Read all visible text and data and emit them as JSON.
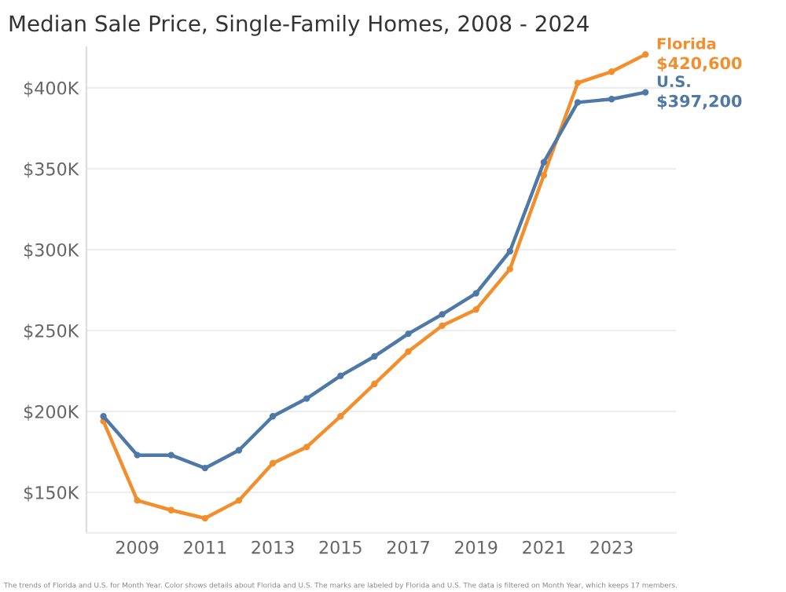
{
  "chart_data": {
    "type": "line",
    "title": "Median Sale Price, Single-Family Homes, 2008 - 2024",
    "x": [
      2008,
      2009,
      2010,
      2011,
      2012,
      2013,
      2014,
      2015,
      2016,
      2017,
      2018,
      2019,
      2020,
      2021,
      2022,
      2023,
      2024
    ],
    "series": [
      {
        "name": "Florida",
        "color": "#f28e2b",
        "values": [
          194000,
          145000,
          139000,
          134000,
          145000,
          168000,
          178000,
          197000,
          217000,
          237000,
          253000,
          263000,
          288000,
          346000,
          403000,
          410000,
          420600
        ],
        "value_labels": [
          null,
          null,
          null,
          null,
          null,
          null,
          null,
          null,
          null,
          null,
          null,
          null,
          null,
          null,
          null,
          null,
          "$420,600"
        ]
      },
      {
        "name": "U.S.",
        "color": "#4e79a7",
        "values": [
          197000,
          173000,
          173000,
          165000,
          176000,
          197000,
          208000,
          222000,
          234000,
          248000,
          260000,
          273000,
          299000,
          354000,
          391000,
          393000,
          397200
        ],
        "value_labels": [
          null,
          null,
          null,
          null,
          null,
          null,
          null,
          null,
          null,
          null,
          null,
          null,
          null,
          null,
          null,
          null,
          "$397,200"
        ]
      }
    ],
    "xlim": [
      2007.5,
      2024.9
    ],
    "xticks": [
      2009,
      2011,
      2013,
      2015,
      2017,
      2019,
      2021,
      2023
    ],
    "ylim": [
      125000,
      425000
    ],
    "yticks": [
      {
        "value": 150000,
        "label": "$150K"
      },
      {
        "value": 200000,
        "label": "$200K"
      },
      {
        "value": 250000,
        "label": "$250K"
      },
      {
        "value": 300000,
        "label": "$300K"
      },
      {
        "value": 350000,
        "label": "$350K"
      },
      {
        "value": 400000,
        "label": "$400K"
      }
    ],
    "grid": "y",
    "marker": "circle",
    "line_style": "solid",
    "legend": false,
    "annotations": [
      "The trends of Florida and U.S. for Month Year. Color shows details about Florida and U.S. The marks are labeled by Florida and U.S. The data is filtered on Month Year, which keeps 17 members."
    ]
  }
}
